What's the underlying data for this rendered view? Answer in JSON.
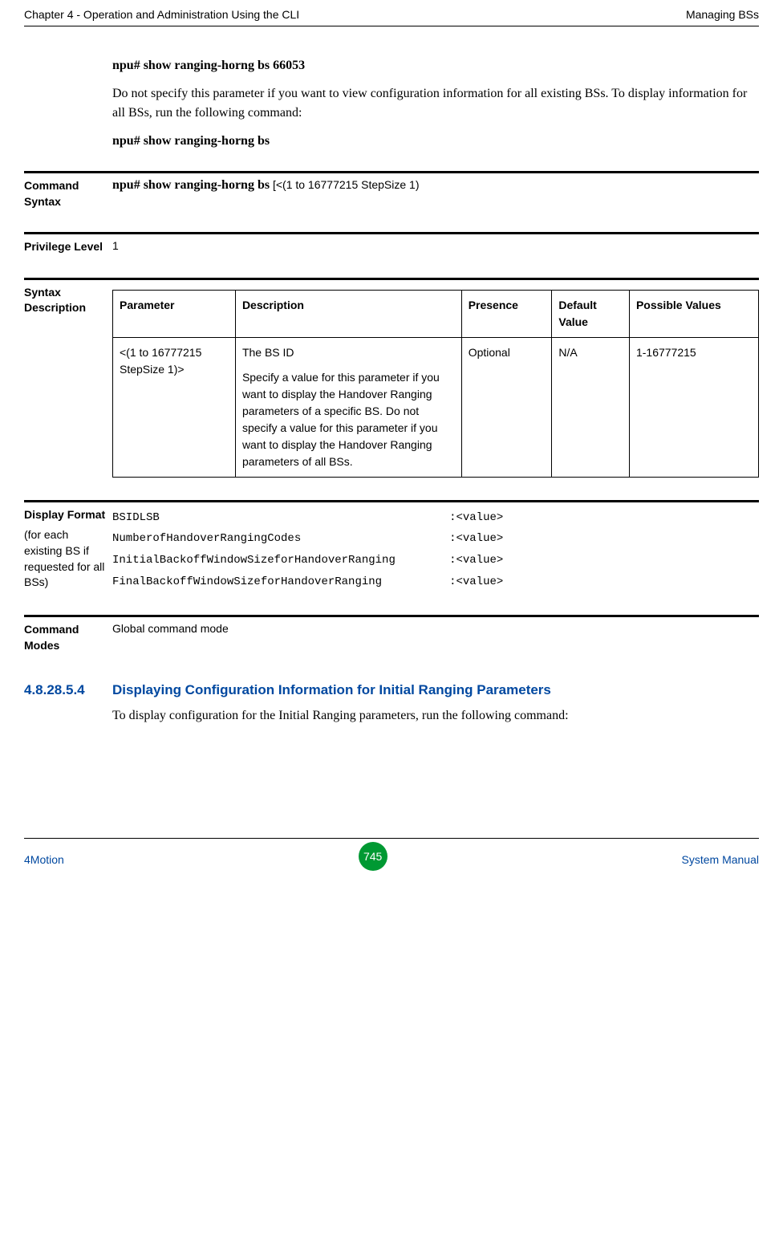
{
  "header": {
    "left": "Chapter 4 - Operation and Administration Using the CLI",
    "right": "Managing BSs"
  },
  "intro": {
    "cmd1": "npu# show ranging-horng bs 66053",
    "para": "Do not specify this parameter if you want to view configuration information for all existing BSs. To display information for all BSs, run the following command:",
    "cmd2": "npu# show ranging-horng bs"
  },
  "command_syntax": {
    "label": "Command Syntax",
    "bold": "npu# show ranging-horng bs",
    "rest": " [<(1 to 16777215 StepSize 1)"
  },
  "privilege": {
    "label": "Privilege Level",
    "value": "1"
  },
  "syntax_desc": {
    "label": "Syntax Description",
    "columns": [
      "Parameter",
      "Description",
      "Presence",
      "Default Value",
      "Possible Values"
    ],
    "row": {
      "param": "<(1 to 16777215 StepSize 1)>",
      "desc_line1": "The BS ID",
      "desc_rest": "Specify a value for this parameter if you want to display the Handover Ranging parameters of a specific BS. Do not specify a value for this parameter if you want to display the Handover Ranging parameters of all BSs.",
      "presence": "Optional",
      "default": "N/A",
      "possible": "1-16777215"
    },
    "col_widths": [
      "19%",
      "35%",
      "14%",
      "12%",
      "20%"
    ]
  },
  "display_format": {
    "label": "Display Format",
    "sublabel": "(for each existing BS if requested for all BSs)",
    "lines": [
      "BSIDLSB                                           :<value>",
      "NumberofHandoverRangingCodes                      :<value>",
      "InitialBackoffWindowSizeforHandoverRanging        :<value>",
      "FinalBackoffWindowSizeforHandoverRanging          :<value>"
    ]
  },
  "command_modes": {
    "label": "Command Modes",
    "value": "Global command mode"
  },
  "subheading": {
    "num": "4.8.28.5.4",
    "title": "Displaying Configuration Information for Initial Ranging Parameters",
    "body": "To display configuration for the Initial Ranging parameters, run the following command:"
  },
  "footer": {
    "left": "4Motion",
    "page": "745",
    "right": "System Manual"
  },
  "colors": {
    "link_blue": "#0048a0",
    "page_green": "#009933"
  }
}
